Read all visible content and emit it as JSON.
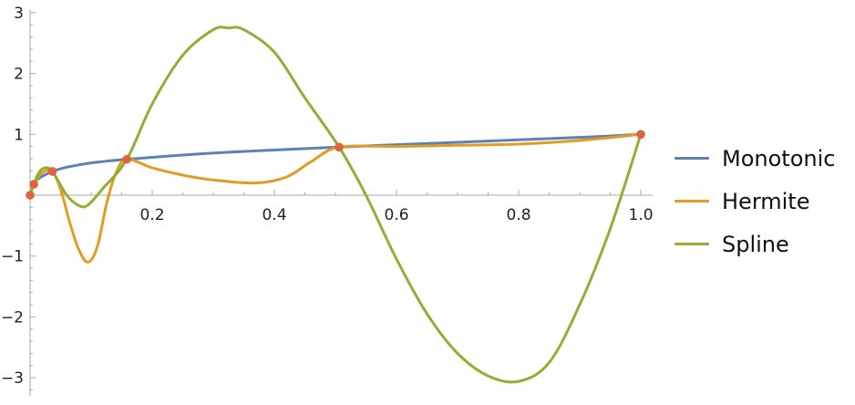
{
  "chart_data": {
    "type": "line",
    "xlim": [
      0,
      1.02
    ],
    "ylim": [
      -3.3,
      3.05
    ],
    "x_ticks": [
      0.2,
      0.4,
      0.6,
      0.8,
      1.0
    ],
    "x_tick_labels": [
      "0.2",
      "0.4",
      "0.6",
      "0.8",
      "1.0"
    ],
    "y_ticks": [
      -3,
      -2,
      -1,
      1,
      2,
      3
    ],
    "y_tick_labels": [
      "−3",
      "−2",
      "−1",
      "1",
      "2",
      "3"
    ],
    "data_points": {
      "x": [
        0,
        0.0061,
        0.0366,
        0.1585,
        0.5061,
        1.0
      ],
      "y": [
        0,
        0.18,
        0.39,
        0.59,
        0.79,
        1.0
      ],
      "color": "#e0623e"
    },
    "series": [
      {
        "name": "Monotonic",
        "color": "#5e81b5",
        "x": [
          0,
          0.0061,
          0.015,
          0.0366,
          0.06,
          0.1,
          0.1585,
          0.25,
          0.35,
          0.5061,
          0.6,
          0.7,
          0.8,
          0.9,
          1.0
        ],
        "y": [
          0,
          0.18,
          0.28,
          0.39,
          0.46,
          0.53,
          0.59,
          0.66,
          0.72,
          0.79,
          0.83,
          0.87,
          0.91,
          0.95,
          1.0
        ]
      },
      {
        "name": "Hermite",
        "color": "#e19c24",
        "x": [
          0,
          0.0061,
          0.015,
          0.025,
          0.0366,
          0.05,
          0.065,
          0.08,
          0.095,
          0.11,
          0.125,
          0.14,
          0.1585,
          0.2,
          0.25,
          0.3,
          0.37,
          0.42,
          0.46,
          0.5061,
          0.6,
          0.7,
          0.8,
          0.9,
          1.0
        ],
        "y": [
          0,
          0.18,
          0.32,
          0.4,
          0.39,
          0.1,
          -0.45,
          -0.9,
          -1.1,
          -0.85,
          -0.15,
          0.35,
          0.59,
          0.45,
          0.33,
          0.25,
          0.2,
          0.3,
          0.55,
          0.79,
          0.8,
          0.82,
          0.84,
          0.9,
          1.0
        ]
      },
      {
        "name": "Spline",
        "color": "#8fb032",
        "x": [
          0,
          0.0061,
          0.015,
          0.025,
          0.0366,
          0.06,
          0.08,
          0.095,
          0.12,
          0.1585,
          0.2,
          0.25,
          0.3,
          0.325,
          0.35,
          0.4,
          0.45,
          0.5061,
          0.55,
          0.6,
          0.65,
          0.7,
          0.75,
          0.8,
          0.85,
          0.9,
          0.95,
          1.0
        ],
        "y": [
          0,
          0.18,
          0.38,
          0.45,
          0.39,
          0.0,
          -0.17,
          -0.16,
          0.12,
          0.59,
          1.5,
          2.3,
          2.72,
          2.75,
          2.72,
          2.35,
          1.6,
          0.79,
          0.0,
          -1.05,
          -1.95,
          -2.6,
          -2.97,
          -3.06,
          -2.75,
          -1.8,
          -0.55,
          1.0
        ]
      }
    ],
    "legend_position": "right",
    "grid": false
  }
}
